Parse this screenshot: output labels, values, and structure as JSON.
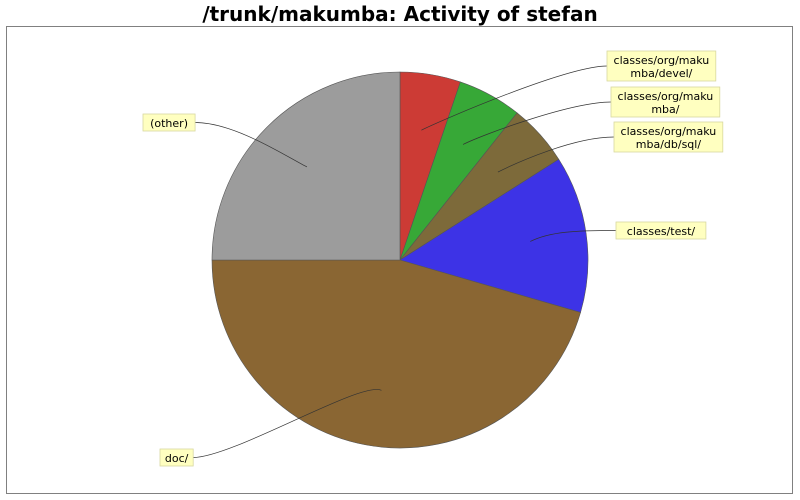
{
  "chart_data": {
    "type": "pie",
    "title": "/trunk/makumba: Activity of stefan",
    "slices": [
      {
        "label": "classes/org/makumba/devel/",
        "label_lines": [
          "classes/org/maku",
          "mba/devel/"
        ],
        "value": 5.2,
        "color": "#cc3b35"
      },
      {
        "label": "classes/org/makumba/",
        "label_lines": [
          "classes/org/maku",
          "mba/"
        ],
        "value": 5.5,
        "color": "#37a837"
      },
      {
        "label": "classes/org/makumba/db/sql/",
        "label_lines": [
          "classes/org/maku",
          "mba/db/sql/"
        ],
        "value": 5.3,
        "color": "#7d6a3a"
      },
      {
        "label": "classes/test/",
        "label_lines": [
          "classes/test/"
        ],
        "value": 13.5,
        "color": "#3d33e6"
      },
      {
        "label": "doc/",
        "label_lines": [
          "doc/"
        ],
        "value": 45.5,
        "color": "#8a6633"
      },
      {
        "label": "(other)",
        "label_lines": [
          "(other)"
        ],
        "value": 25.0,
        "color": "#9c9c9c"
      }
    ]
  }
}
